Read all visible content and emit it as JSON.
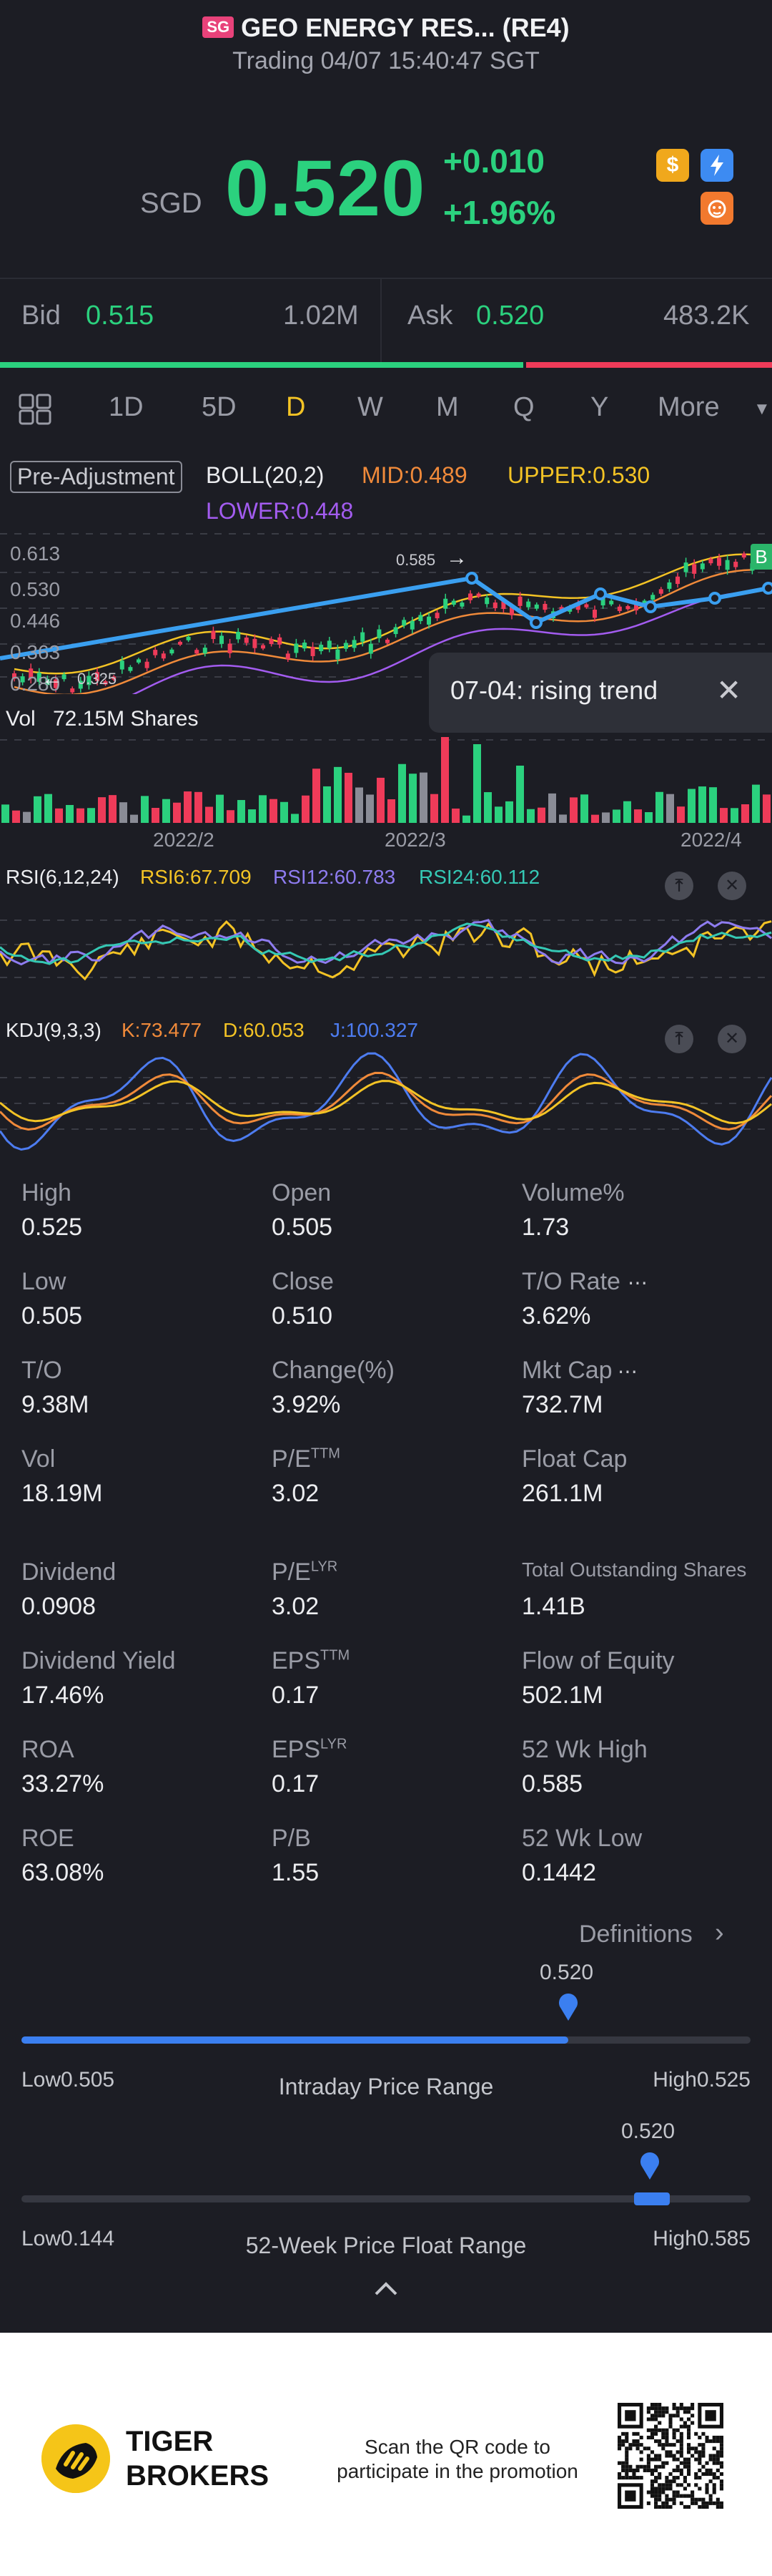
{
  "header": {
    "market_badge": "SG",
    "title": "GEO ENERGY RES... (RE4)",
    "subtitle": "Trading 04/07 15:40:47 SGT"
  },
  "quote": {
    "currency": "SGD",
    "price": "0.520",
    "change": "+0.010",
    "change_pct": "+1.96%",
    "icons": [
      "dollar-badge-icon",
      "lightning-badge-icon",
      "tiger-badge-icon"
    ]
  },
  "bidask": {
    "bid_label": "Bid",
    "bid_price": "0.515",
    "bid_size": "1.02M",
    "ask_label": "Ask",
    "ask_price": "0.520",
    "ask_size": "483.2K",
    "bid_ratio": 0.68
  },
  "periods": {
    "items": [
      "1D",
      "5D",
      "D",
      "W",
      "M",
      "Q",
      "Y",
      "More"
    ],
    "active": "D"
  },
  "indicators": {
    "pre_adjustment": "Pre-Adjustment",
    "boll": "BOLL(20,2)",
    "mid": "MID:0.489",
    "upper": "UPPER:0.530",
    "lower": "LOWER:0.448",
    "badge": "B"
  },
  "main_chart": {
    "y_ticks": [
      "0.613",
      "0.530",
      "0.446",
      "0.363",
      "0.280"
    ],
    "high_marker": "0.585",
    "low_marker": "0.325",
    "tooltip": "07-04: rising trend"
  },
  "volume": {
    "label": "Vol",
    "value": "72.15M Shares",
    "dates": [
      "2022/2",
      "2022/3",
      "2022/4"
    ]
  },
  "rsi": {
    "label": "RSI(6,12,24)",
    "rsi6": "RSI6:67.709",
    "rsi12": "RSI12:60.783",
    "rsi24": "RSI24:60.112"
  },
  "kdj": {
    "label": "KDJ(9,3,3)",
    "k": "K:73.477",
    "d": "D:60.053",
    "j": "J:100.327"
  },
  "stats": [
    {
      "label": "High",
      "value": "0.525"
    },
    {
      "label": "Open",
      "value": "0.505"
    },
    {
      "label": "Volume%",
      "value": "1.73"
    },
    {
      "label": "Low",
      "value": "0.505"
    },
    {
      "label": "Close",
      "value": "0.510"
    },
    {
      "label": "T/O Rate",
      "value": "3.62%"
    },
    {
      "label": "T/O",
      "value": "9.38M"
    },
    {
      "label": "Change(%)",
      "value": "3.92%"
    },
    {
      "label": "Mkt Cap",
      "value": "732.7M"
    },
    {
      "label": "Vol",
      "value": "18.19M"
    },
    {
      "label": "P/E",
      "sup": "TTM",
      "value": "3.02"
    },
    {
      "label": "Float Cap",
      "value": "261.1M"
    },
    {
      "label": "Dividend",
      "value": "0.0908"
    },
    {
      "label": "P/E",
      "sup": "LYR",
      "value": "3.02"
    },
    {
      "label": "Total Outstanding Shares",
      "value": "1.41B"
    },
    {
      "label": "Dividend Yield",
      "value": "17.46%"
    },
    {
      "label": "EPS",
      "sup": "TTM",
      "value": "0.17"
    },
    {
      "label": "Flow of Equity",
      "value": "502.1M"
    },
    {
      "label": "ROA",
      "value": "33.27%"
    },
    {
      "label": "EPS",
      "sup": "LYR",
      "value": "0.17"
    },
    {
      "label": "52 Wk High",
      "value": "0.585"
    },
    {
      "label": "ROE",
      "value": "63.08%"
    },
    {
      "label": "P/B",
      "value": "1.55"
    },
    {
      "label": "52 Wk Low",
      "value": "0.1442"
    }
  ],
  "definitions_link": "Definitions",
  "intraday_range": {
    "title": "Intraday Price Range",
    "current": "0.520",
    "low_label": "Low",
    "low": "0.505",
    "high_label": "High",
    "high": "0.525",
    "position": 0.75
  },
  "week52_range": {
    "title": "52-Week Price Float Range",
    "current": "0.520",
    "low_label": "Low",
    "low": "0.144",
    "high_label": "High",
    "high": "0.585",
    "position": 0.85
  },
  "footer": {
    "brand_line1": "TIGER",
    "brand_line2": "BROKERS",
    "promo_line1": "Scan the QR code to",
    "promo_line2": "participate in the promotion"
  },
  "colors": {
    "up": "#2bd17e",
    "down": "#ef3b59",
    "accent": "#f3c325",
    "blue": "#3b7ff0",
    "boll_mid": "#f08a3a",
    "boll_upper": "#f3c325",
    "boll_lower": "#a35cf0",
    "rsi6": "#f3c325",
    "rsi12": "#8e7cf0",
    "rsi24": "#35c8b4",
    "kdj_k": "#f08a3a",
    "kdj_d": "#f3c325",
    "kdj_j": "#4d7cf0"
  }
}
